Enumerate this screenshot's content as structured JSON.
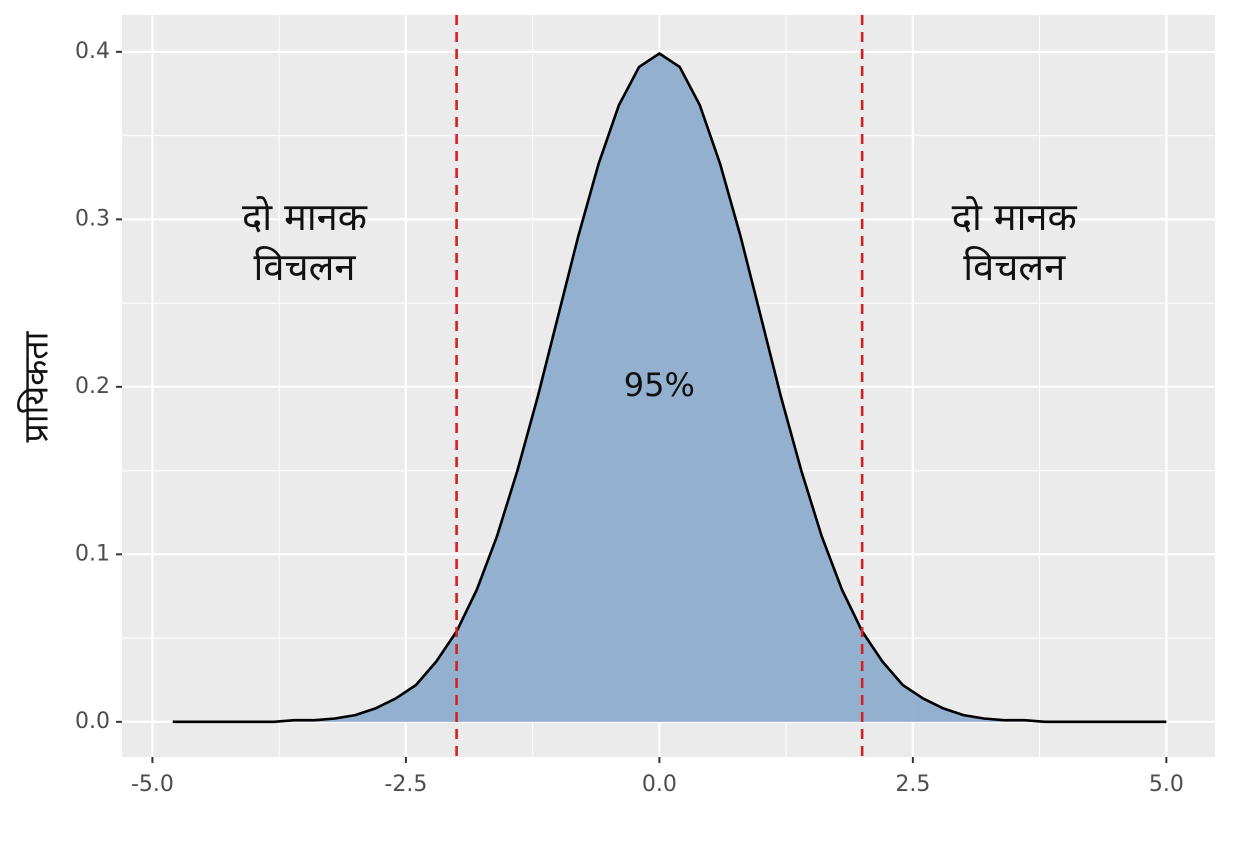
{
  "chart_data": {
    "type": "area",
    "y_label": "प्रायिकता",
    "x": [
      -4.8,
      -4.6,
      -4.4,
      -4.2,
      -4.0,
      -3.8,
      -3.6,
      -3.4,
      -3.2,
      -3.0,
      -2.8,
      -2.6,
      -2.4,
      -2.2,
      -2.0,
      -1.8,
      -1.6,
      -1.4,
      -1.2,
      -1.0,
      -0.8,
      -0.6,
      -0.4,
      -0.2,
      0,
      0.2,
      0.4,
      0.6,
      0.8,
      1.0,
      1.2,
      1.4,
      1.6,
      1.8,
      2.0,
      2.2,
      2.4,
      2.6,
      2.8,
      3.0,
      3.2,
      3.4,
      3.6,
      3.8,
      4.0,
      4.2,
      4.4,
      4.6,
      4.8,
      5.0
    ],
    "values": [
      0,
      0,
      0,
      0,
      0,
      0,
      0.001,
      0.001,
      0.002,
      0.004,
      0.008,
      0.014,
      0.022,
      0.036,
      0.054,
      0.079,
      0.111,
      0.15,
      0.194,
      0.242,
      0.29,
      0.333,
      0.368,
      0.391,
      0.399,
      0.391,
      0.368,
      0.333,
      0.29,
      0.242,
      0.194,
      0.15,
      0.111,
      0.079,
      0.054,
      0.036,
      0.022,
      0.014,
      0.008,
      0.004,
      0.002,
      0.001,
      0.001,
      0,
      0,
      0,
      0,
      0,
      0,
      0
    ],
    "fill_color": "#8eadcc",
    "line_color": "#000000",
    "vlines": [
      -2,
      2
    ],
    "vline_color": "#d42020",
    "annotations": [
      {
        "lines": [
          "दो मानक",
          "विचलन"
        ],
        "x": -3.5,
        "y": 0.3
      },
      {
        "lines": [
          "दो मानक",
          "विचलन"
        ],
        "x": 3.5,
        "y": 0.3
      },
      {
        "lines": [
          "95%"
        ],
        "x": 0,
        "y": 0.2
      }
    ],
    "xlim": [
      -5.3,
      5.48
    ],
    "ylim": [
      -0.021,
      0.422
    ],
    "xticks": [
      {
        "value": -5,
        "label": "-5.0"
      },
      -2.5,
      {
        "value": 0,
        "label": "0.0"
      },
      2.5,
      {
        "value": 5,
        "label": "5.0"
      }
    ],
    "yticks": [
      {
        "value": 0,
        "label": "0.0"
      },
      0.1,
      0.2,
      0.3,
      0.4
    ],
    "grid": true,
    "minor_grid": true,
    "panel_color": "#ebebeb"
  }
}
